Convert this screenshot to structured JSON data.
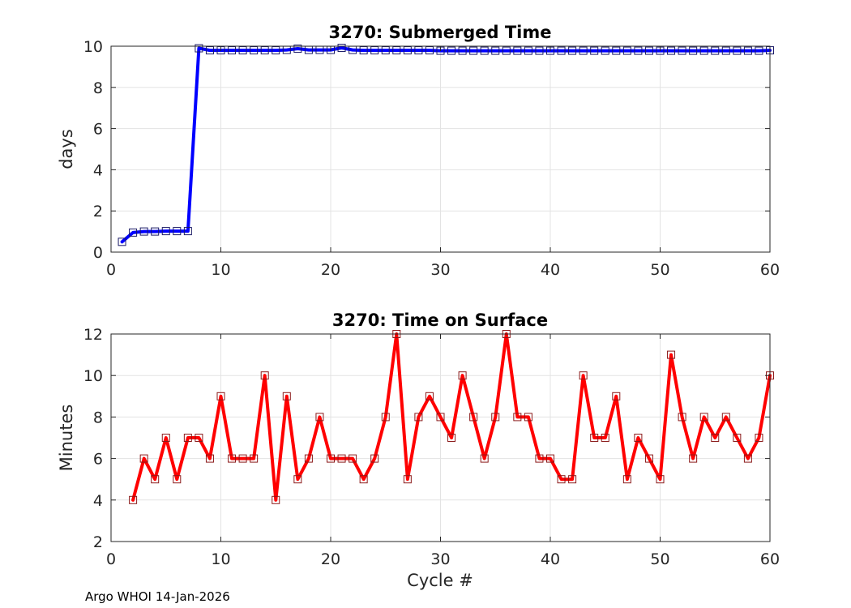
{
  "footer": "Argo WHOI 14-Jan-2026",
  "chart_data": [
    {
      "type": "line",
      "title": "3270: Submerged Time",
      "xlabel": "",
      "ylabel": "days",
      "xlim": [
        0,
        60
      ],
      "ylim": [
        0,
        10
      ],
      "xticks": [
        0,
        10,
        20,
        30,
        40,
        50,
        60
      ],
      "yticks": [
        0,
        2,
        4,
        6,
        8,
        10
      ],
      "grid": true,
      "line_color": "#0000ff",
      "marker_color": "#1a1a66",
      "series": [
        {
          "name": "Submerged Time",
          "x": [
            1,
            2,
            3,
            4,
            5,
            6,
            7,
            8,
            9,
            10,
            11,
            12,
            13,
            14,
            15,
            16,
            17,
            18,
            19,
            20,
            21,
            22,
            23,
            24,
            25,
            26,
            27,
            28,
            29,
            30,
            31,
            32,
            33,
            34,
            35,
            36,
            37,
            38,
            39,
            40,
            41,
            42,
            43,
            44,
            45,
            46,
            47,
            48,
            49,
            50,
            51,
            52,
            53,
            54,
            55,
            56,
            57,
            58,
            59,
            60
          ],
          "values": [
            0.5,
            0.95,
            1.0,
            1.0,
            1.02,
            1.02,
            1.02,
            9.9,
            9.8,
            9.8,
            9.8,
            9.8,
            9.8,
            9.8,
            9.8,
            9.82,
            9.88,
            9.82,
            9.82,
            9.82,
            9.92,
            9.82,
            9.8,
            9.8,
            9.8,
            9.8,
            9.8,
            9.8,
            9.8,
            9.78,
            9.78,
            9.78,
            9.78,
            9.78,
            9.78,
            9.78,
            9.78,
            9.78,
            9.78,
            9.78,
            9.78,
            9.78,
            9.78,
            9.78,
            9.78,
            9.78,
            9.78,
            9.78,
            9.78,
            9.78,
            9.78,
            9.78,
            9.78,
            9.78,
            9.78,
            9.78,
            9.78,
            9.78,
            9.78,
            9.8
          ]
        }
      ]
    },
    {
      "type": "line",
      "title": "3270: Time on Surface",
      "xlabel": "Cycle #",
      "ylabel": "Minutes",
      "xlim": [
        0,
        60
      ],
      "ylim": [
        2,
        12
      ],
      "xticks": [
        0,
        10,
        20,
        30,
        40,
        50,
        60
      ],
      "yticks": [
        2,
        4,
        6,
        8,
        10,
        12
      ],
      "grid": true,
      "line_color": "#ff0000",
      "marker_color": "#8b1a1a",
      "series": [
        {
          "name": "Time on Surface",
          "x": [
            2,
            3,
            4,
            5,
            6,
            7,
            8,
            9,
            10,
            11,
            12,
            13,
            14,
            15,
            16,
            17,
            18,
            19,
            20,
            21,
            22,
            23,
            24,
            25,
            26,
            27,
            28,
            29,
            30,
            31,
            32,
            33,
            34,
            35,
            36,
            37,
            38,
            39,
            40,
            41,
            42,
            43,
            44,
            45,
            46,
            47,
            48,
            49,
            50,
            51,
            52,
            53,
            54,
            55,
            56,
            57,
            58,
            59,
            60
          ],
          "values": [
            4,
            6,
            5,
            7,
            5,
            7,
            7,
            6,
            9,
            6,
            6,
            6,
            10,
            4,
            9,
            5,
            6,
            8,
            6,
            6,
            6,
            5,
            6,
            8,
            12,
            5,
            8,
            9,
            8,
            7,
            10,
            8,
            6,
            8,
            12,
            8,
            8,
            6,
            6,
            5,
            5,
            10,
            7,
            7,
            9,
            5,
            7,
            6,
            5,
            11,
            8,
            6,
            8,
            7,
            8,
            7,
            6,
            7,
            10
          ]
        }
      ]
    }
  ]
}
